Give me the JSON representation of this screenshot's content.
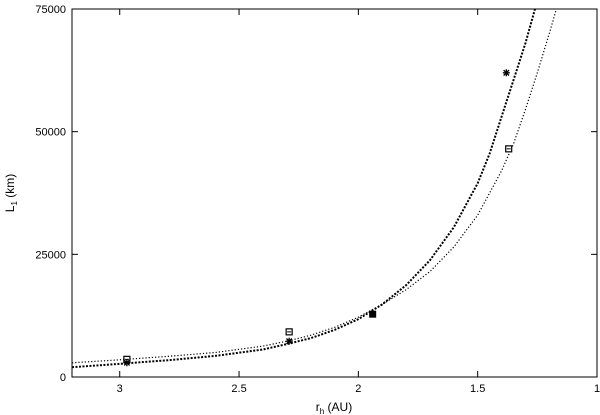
{
  "chart_data": {
    "type": "scatter",
    "xlabel_main": "r",
    "xlabel_sub": "h",
    "xlabel_unit": " (AU)",
    "ylabel_main": "L",
    "ylabel_sub": "1",
    "ylabel_unit": " (km)",
    "xlim": [
      3.2,
      1.0
    ],
    "ylim": [
      0,
      75000
    ],
    "x_ticks": [
      3,
      2.5,
      2,
      1.5,
      1
    ],
    "x_tick_labels": [
      "3",
      "2.5",
      "2",
      "1.5",
      "1"
    ],
    "y_ticks": [
      0,
      25000,
      50000,
      75000
    ],
    "y_tick_labels": [
      "0",
      "25000",
      "50000",
      "75000"
    ],
    "grid": false,
    "series": [
      {
        "marker": "open-square",
        "points": [
          [
            2.97,
            3600
          ],
          [
            2.29,
            9200
          ],
          [
            1.37,
            46500
          ]
        ]
      },
      {
        "marker": "star",
        "points": [
          [
            2.97,
            2900
          ],
          [
            2.29,
            7300
          ],
          [
            1.38,
            62000
          ]
        ]
      },
      {
        "marker": "filled-square",
        "points": [
          [
            1.94,
            12800
          ]
        ]
      }
    ],
    "curves": [
      {
        "style": "dense-dotted",
        "x_range": [
          3.2,
          1.26
        ],
        "points": [
          [
            3.2,
            2000
          ],
          [
            3.0,
            2700
          ],
          [
            2.8,
            3400
          ],
          [
            2.6,
            4300
          ],
          [
            2.4,
            5600
          ],
          [
            2.3,
            6700
          ],
          [
            2.2,
            7900
          ],
          [
            2.1,
            9600
          ],
          [
            2.0,
            11800
          ],
          [
            1.9,
            14800
          ],
          [
            1.8,
            18700
          ],
          [
            1.7,
            23800
          ],
          [
            1.6,
            30500
          ],
          [
            1.5,
            39500
          ],
          [
            1.45,
            45500
          ],
          [
            1.4,
            53000
          ],
          [
            1.35,
            60500
          ],
          [
            1.3,
            68000
          ],
          [
            1.26,
            75000
          ]
        ]
      },
      {
        "style": "sparse-dotted",
        "x_range": [
          3.2,
          1.17
        ],
        "points": [
          [
            3.2,
            2900
          ],
          [
            3.0,
            3500
          ],
          [
            2.8,
            4200
          ],
          [
            2.6,
            5000
          ],
          [
            2.4,
            6300
          ],
          [
            2.3,
            7300
          ],
          [
            2.2,
            8500
          ],
          [
            2.1,
            10100
          ],
          [
            2.0,
            12200
          ],
          [
            1.9,
            14800
          ],
          [
            1.8,
            17800
          ],
          [
            1.7,
            21500
          ],
          [
            1.6,
            26500
          ],
          [
            1.5,
            33000
          ],
          [
            1.4,
            42000
          ],
          [
            1.35,
            47500
          ],
          [
            1.3,
            54500
          ],
          [
            1.25,
            62000
          ],
          [
            1.2,
            70000
          ],
          [
            1.17,
            75000
          ]
        ]
      }
    ]
  }
}
